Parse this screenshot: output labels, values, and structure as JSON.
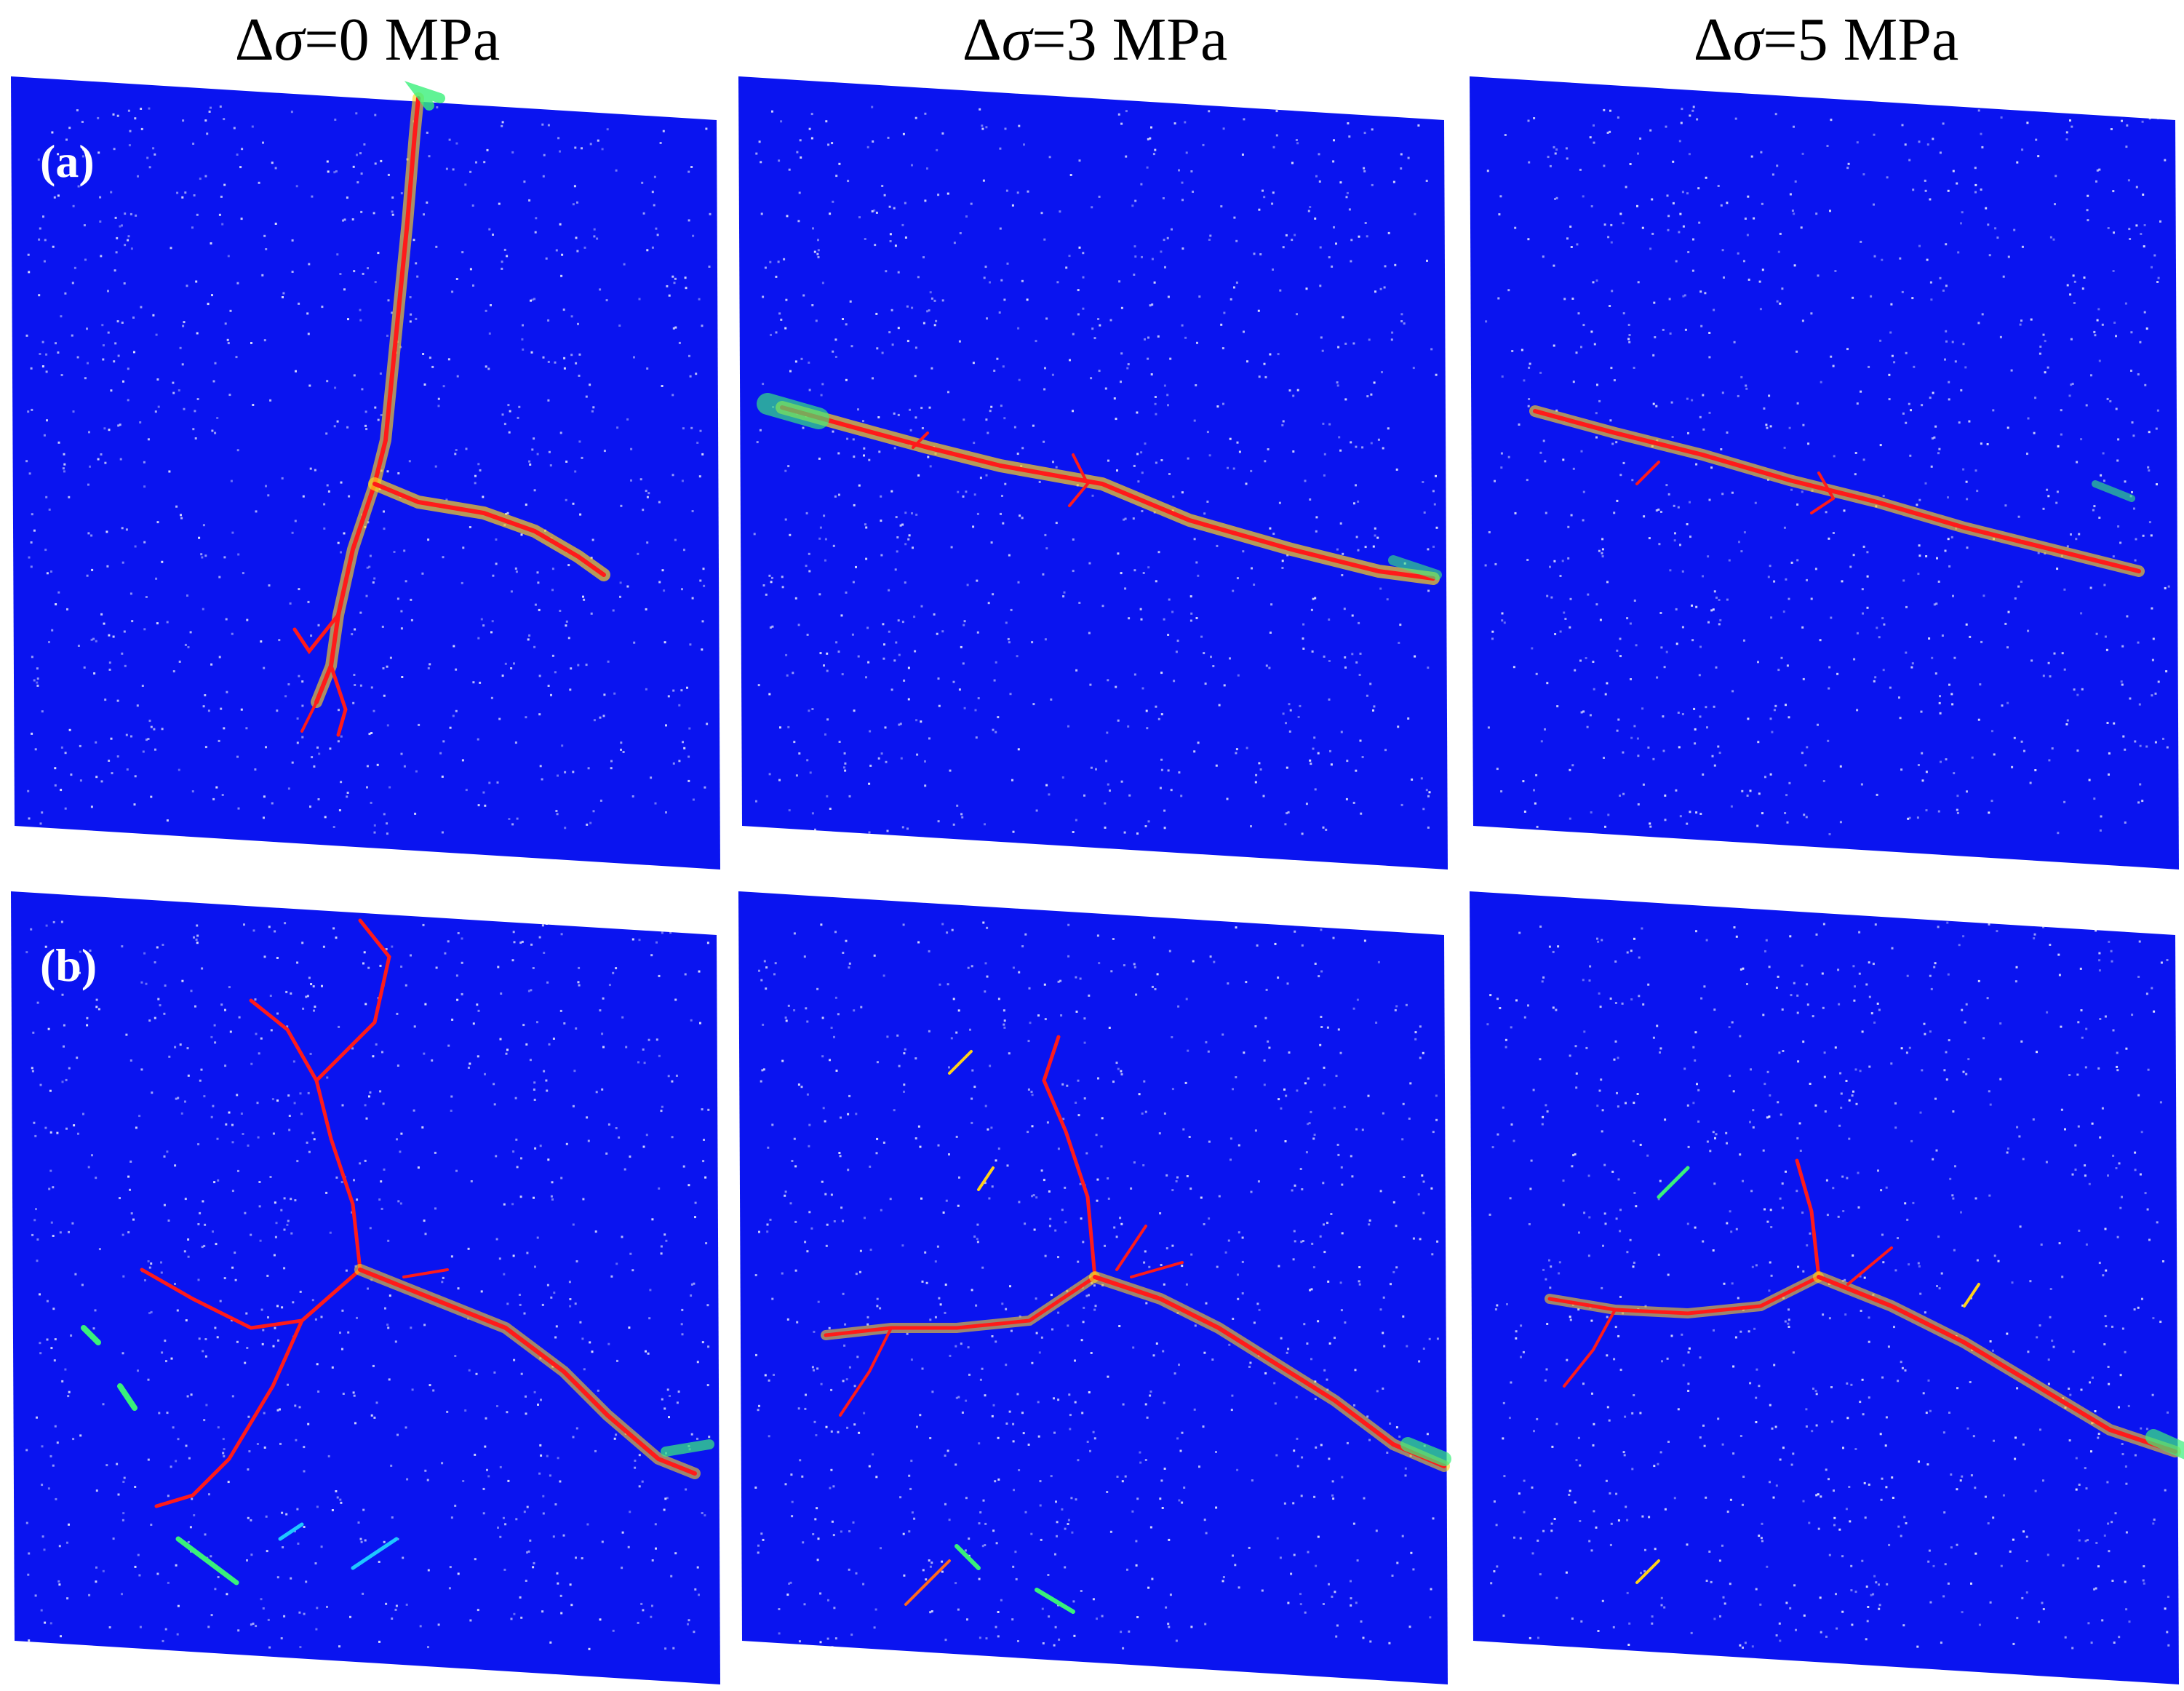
{
  "figure": {
    "column_titles": [
      {
        "delta": "Δ",
        "sigma": "σ",
        "rest": "=0 MPa"
      },
      {
        "delta": "Δ",
        "sigma": "σ",
        "rest": "=3 MPa"
      },
      {
        "delta": "Δ",
        "sigma": "σ",
        "rest": "=5 MPa"
      }
    ],
    "row_labels": [
      "(a)",
      "(b)"
    ]
  },
  "colors": {
    "background_field": "#0a14f0",
    "crack_core": "#ff1a1a",
    "crack_halo": "#ffd21a",
    "damage_green": "#3af07a",
    "damage_cyan": "#1ec8ff",
    "speckle": "#ffffff"
  }
}
